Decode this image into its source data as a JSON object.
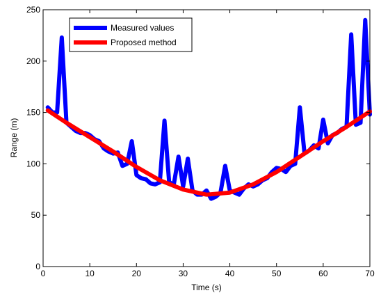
{
  "chart_data": {
    "type": "line",
    "xlabel": "Time (s)",
    "ylabel": "Range (m)",
    "xlim": [
      0,
      70
    ],
    "ylim": [
      0,
      250
    ],
    "xticks": [
      0,
      10,
      20,
      30,
      40,
      50,
      60,
      70
    ],
    "yticks": [
      0,
      50,
      100,
      150,
      200,
      250
    ],
    "grid": false,
    "legend_position": "top-left",
    "series": [
      {
        "name": "Measured values",
        "color": "#0000ff",
        "x": [
          1,
          2,
          3,
          4,
          5,
          6,
          7,
          8,
          9,
          10,
          11,
          12,
          13,
          14,
          15,
          16,
          17,
          18,
          19,
          20,
          21,
          22,
          23,
          24,
          25,
          26,
          27,
          28,
          29,
          30,
          31,
          32,
          33,
          34,
          35,
          36,
          37,
          38,
          39,
          40,
          41,
          42,
          43,
          44,
          45,
          46,
          47,
          48,
          49,
          50,
          51,
          52,
          53,
          54,
          55,
          56,
          57,
          58,
          59,
          60,
          61,
          62,
          63,
          64,
          65,
          66,
          67,
          68,
          69,
          70
        ],
        "y": [
          155,
          150,
          150,
          223,
          140,
          136,
          132,
          130,
          130,
          128,
          124,
          122,
          115,
          112,
          110,
          111,
          98,
          100,
          122,
          89,
          86,
          85,
          81,
          80,
          82,
          142,
          82,
          80,
          107,
          78,
          105,
          74,
          70,
          70,
          74,
          66,
          68,
          72,
          98,
          74,
          72,
          70,
          76,
          80,
          78,
          80,
          84,
          86,
          92,
          96,
          95,
          92,
          98,
          100,
          155,
          110,
          113,
          118,
          115,
          143,
          120,
          128,
          130,
          134,
          136,
          226,
          138,
          140,
          240,
          148
        ]
      },
      {
        "name": "Proposed method",
        "color": "#ff0000",
        "x": [
          1,
          5,
          10,
          15,
          20,
          25,
          30,
          35,
          40,
          45,
          50,
          55,
          60,
          65,
          70
        ],
        "y": [
          152,
          140,
          126,
          112,
          97,
          84,
          75,
          70,
          72,
          80,
          92,
          107,
          122,
          136,
          151
        ]
      }
    ]
  }
}
